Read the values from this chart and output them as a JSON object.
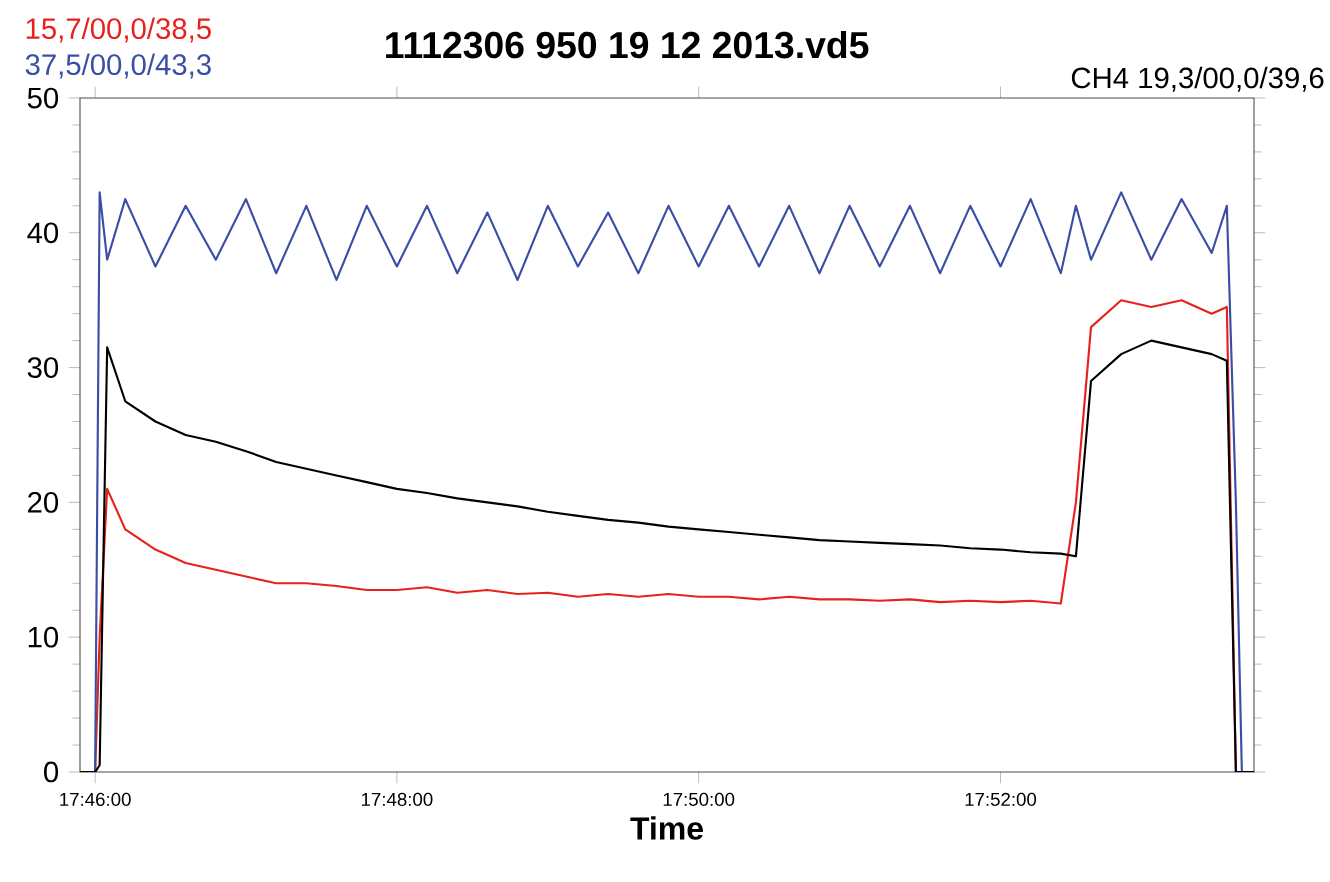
{
  "chart_data": {
    "type": "line",
    "title": "1112306 950 19 12 2013.vd5",
    "xlabel": "Time",
    "annotations": [
      "15,7/00,0/38,5",
      "37,5/00,0/43,3",
      "CH4  19,3/00,0/39,6"
    ],
    "x": [
      17.765,
      17.76667,
      17.76717,
      17.768,
      17.77,
      17.77333,
      17.77667,
      17.78,
      17.78333,
      17.78667,
      17.79,
      17.79333,
      17.79667,
      17.8,
      17.80333,
      17.80667,
      17.81,
      17.81333,
      17.81667,
      17.82,
      17.82333,
      17.82667,
      17.83,
      17.83333,
      17.83667,
      17.84,
      17.84333,
      17.84667,
      17.85,
      17.85333,
      17.85667,
      17.86,
      17.86333,
      17.86667,
      17.87,
      17.87333,
      17.875,
      17.87667,
      17.88,
      17.88333,
      17.88667,
      17.89,
      17.89167,
      17.89267,
      17.89333,
      17.89467
    ],
    "series": [
      {
        "color": "#e8211c",
        "values": [
          0,
          0,
          10,
          21,
          18,
          16.5,
          15.5,
          15,
          14.5,
          14,
          14,
          13.8,
          13.5,
          13.5,
          13.7,
          13.3,
          13.5,
          13.2,
          13.3,
          13,
          13.2,
          13,
          13.2,
          13,
          13,
          12.8,
          13,
          12.8,
          12.8,
          12.7,
          12.8,
          12.6,
          12.7,
          12.6,
          12.7,
          12.5,
          20,
          33,
          35,
          34.5,
          35,
          34,
          34.5,
          0,
          0,
          0
        ]
      },
      {
        "color": "#3a4ea6",
        "values": [
          0,
          0,
          43,
          38,
          42.5,
          37.5,
          42,
          38,
          42.5,
          37,
          42,
          36.5,
          42,
          37.5,
          42,
          37,
          41.5,
          36.5,
          42,
          37.5,
          41.5,
          37,
          42,
          37.5,
          42,
          37.5,
          42,
          37,
          42,
          37.5,
          42,
          37,
          42,
          37.5,
          42.5,
          37,
          42,
          38,
          43,
          38,
          42.5,
          38.5,
          42,
          20,
          0,
          0
        ]
      },
      {
        "color": "#000000",
        "values": [
          0,
          0,
          0.5,
          31.5,
          27.5,
          26,
          25,
          24.5,
          23.8,
          23,
          22.5,
          22,
          21.5,
          21,
          20.7,
          20.3,
          20,
          19.7,
          19.3,
          19,
          18.7,
          18.5,
          18.2,
          18,
          17.8,
          17.6,
          17.4,
          17.2,
          17.1,
          17,
          16.9,
          16.8,
          16.6,
          16.5,
          16.3,
          16.2,
          16,
          29,
          31,
          32,
          31.5,
          31,
          30.5,
          0,
          0,
          0
        ]
      }
    ],
    "xlim": [
      17.765,
      17.89467
    ],
    "ylim": [
      0,
      50
    ],
    "xticks": [
      {
        "value": 17.76667,
        "label": "17:46:00"
      },
      {
        "value": 17.8,
        "label": "17:48:00"
      },
      {
        "value": 17.83333,
        "label": "17:50:00"
      },
      {
        "value": 17.86667,
        "label": "17:52:00"
      }
    ],
    "yticks": [
      0,
      10,
      20,
      30,
      40,
      50
    ]
  }
}
